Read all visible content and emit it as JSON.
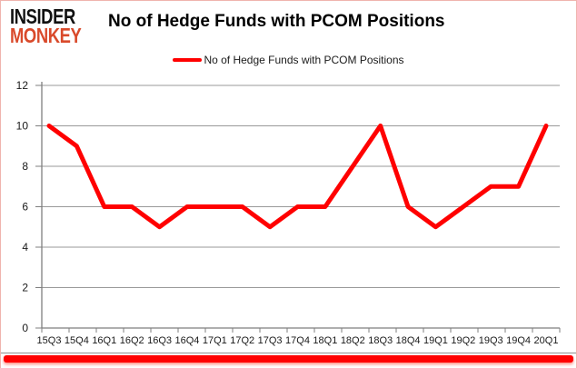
{
  "page": {
    "logo": {
      "line1": "INSIDER",
      "line2": "MONKEY"
    },
    "title": "No of Hedge Funds with PCOM Positions",
    "legend": {
      "label": "No of Hedge Funds with PCOM Positions"
    }
  },
  "colors": {
    "brand_red": "#d94a2b",
    "series_red": "#ff0000",
    "gridline_gray": "#9a9a9a",
    "axis_gray": "#7f7f7f",
    "label_dark": "#1a1a1a",
    "border_pink": "#f0b4ae"
  },
  "chart_data": {
    "type": "line",
    "title": "No of Hedge Funds with PCOM Positions",
    "categories": [
      "15Q3",
      "15Q4",
      "16Q1",
      "16Q2",
      "16Q3",
      "16Q4",
      "17Q1",
      "17Q2",
      "17Q3",
      "17Q4",
      "18Q1",
      "18Q2",
      "18Q3",
      "18Q4",
      "19Q1",
      "19Q2",
      "19Q3",
      "19Q4",
      "20Q1"
    ],
    "series": [
      {
        "name": "No of Hedge Funds with PCOM Positions",
        "color": "#ff0000",
        "values": [
          10,
          9,
          6,
          6,
          5,
          6,
          6,
          6,
          5,
          6,
          6,
          8,
          10,
          6,
          5,
          6,
          7,
          7,
          10
        ]
      }
    ],
    "ylim": [
      0,
      12
    ],
    "yticks": [
      0,
      2,
      4,
      6,
      8,
      10,
      12
    ],
    "grid": true,
    "legend_position": "top",
    "gridline_color": "#9a9a9a",
    "axis_color": "#7f7f7f",
    "label_color": "#1a1a1a"
  }
}
